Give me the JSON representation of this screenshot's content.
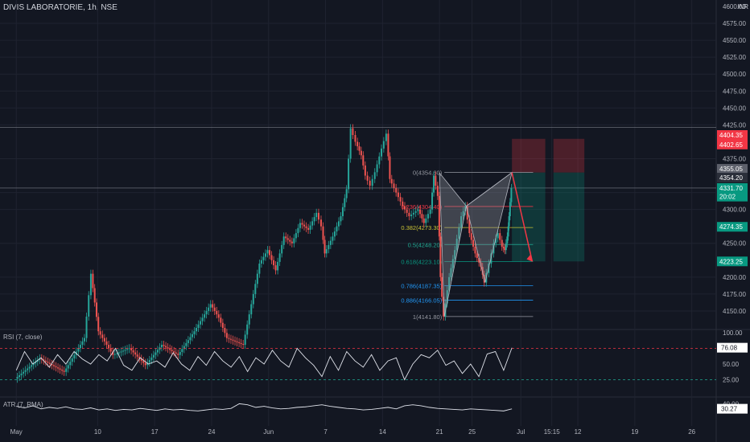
{
  "chart_data": {
    "type": "candlestick",
    "title": "DIVIS LABORATORIE, 1h, NSE",
    "currency": "INR",
    "colors": {
      "up": "#26a69a",
      "down": "#ef5350",
      "bg": "#131722",
      "grid": "#1f2330",
      "text": "#b2b5be",
      "fib_gray": "#9598a1",
      "fib_red": "#f23645",
      "fib_yellow": "#c9c235",
      "fib_green": "#22ab94",
      "fib_teal": "#089981",
      "fib_cyan": "#2196f3",
      "stop": "#f23645",
      "target": "#089981"
    },
    "price_axis": {
      "min": 4125,
      "max": 4600,
      "ticks": [
        "4575.00",
        "4550.00",
        "4525.00",
        "4500.00",
        "4475.00",
        "4450.00",
        "4425.00",
        "4375.00",
        "4325.00",
        "4300.00",
        "4250.00",
        "4200.00",
        "4175.00",
        "4150.00"
      ],
      "top_label": "4600.00"
    },
    "x_axis": {
      "ticks": [
        "May",
        "10",
        "17",
        "24",
        "Jun",
        "7",
        "14",
        "21",
        "25",
        "Jul",
        "15:15",
        "12",
        "19",
        "26"
      ],
      "positions": [
        0,
        10,
        17,
        24,
        31,
        38,
        45,
        52,
        56,
        62,
        65.8,
        69,
        76,
        83
      ],
      "range": [
        -2,
        86
      ]
    },
    "price_series": [
      {
        "t": 0,
        "p": 4050
      },
      {
        "t": 3,
        "p": 4080
      },
      {
        "t": 6,
        "p": 4060
      },
      {
        "t": 8.5,
        "p": 4110
      },
      {
        "t": 9.3,
        "p": 4205
      },
      {
        "t": 10.2,
        "p": 4120
      },
      {
        "t": 12,
        "p": 4085
      },
      {
        "t": 14,
        "p": 4095
      },
      {
        "t": 16,
        "p": 4070
      },
      {
        "t": 18,
        "p": 4100
      },
      {
        "t": 20,
        "p": 4085
      },
      {
        "t": 22,
        "p": 4120
      },
      {
        "t": 24,
        "p": 4160
      },
      {
        "t": 25,
        "p": 4140
      },
      {
        "t": 26,
        "p": 4110
      },
      {
        "t": 28,
        "p": 4100
      },
      {
        "t": 29,
        "p": 4160
      },
      {
        "t": 30,
        "p": 4220
      },
      {
        "t": 31,
        "p": 4240
      },
      {
        "t": 32,
        "p": 4210
      },
      {
        "t": 33,
        "p": 4260
      },
      {
        "t": 34,
        "p": 4250
      },
      {
        "t": 35,
        "p": 4280
      },
      {
        "t": 36,
        "p": 4270
      },
      {
        "t": 37,
        "p": 4295
      },
      {
        "t": 37.6,
        "p": 4275
      },
      {
        "t": 38,
        "p": 4235
      },
      {
        "t": 39,
        "p": 4260
      },
      {
        "t": 40,
        "p": 4290
      },
      {
        "t": 40.7,
        "p": 4330
      },
      {
        "t": 41.2,
        "p": 4420
      },
      {
        "t": 41.8,
        "p": 4400
      },
      {
        "t": 42.5,
        "p": 4380
      },
      {
        "t": 43,
        "p": 4350
      },
      {
        "t": 43.6,
        "p": 4335
      },
      {
        "t": 44.2,
        "p": 4355
      },
      {
        "t": 45,
        "p": 4390
      },
      {
        "t": 45.6,
        "p": 4412
      },
      {
        "t": 46,
        "p": 4345
      },
      {
        "t": 46.8,
        "p": 4325
      },
      {
        "t": 47.6,
        "p": 4305
      },
      {
        "t": 48.4,
        "p": 4290
      },
      {
        "t": 49.5,
        "p": 4300
      },
      {
        "t": 50.2,
        "p": 4280
      },
      {
        "t": 51,
        "p": 4300
      },
      {
        "t": 51.4,
        "p": 4350
      },
      {
        "t": 51.9,
        "p": 4320
      },
      {
        "t": 52.2,
        "p": 4200
      },
      {
        "t": 52.6,
        "p": 4141.8
      },
      {
        "t": 53.3,
        "p": 4200
      },
      {
        "t": 54,
        "p": 4240
      },
      {
        "t": 54.8,
        "p": 4290
      },
      {
        "t": 55.3,
        "p": 4305
      },
      {
        "t": 55.8,
        "p": 4265
      },
      {
        "t": 56.5,
        "p": 4235
      },
      {
        "t": 57.2,
        "p": 4215
      },
      {
        "t": 57.6,
        "p": 4192
      },
      {
        "t": 58.2,
        "p": 4220
      },
      {
        "t": 58.8,
        "p": 4250
      },
      {
        "t": 59.3,
        "p": 4265
      },
      {
        "t": 59.8,
        "p": 4245
      },
      {
        "t": 60.1,
        "p": 4240
      },
      {
        "t": 60.4,
        "p": 4260
      },
      {
        "t": 60.6,
        "p": 4290
      },
      {
        "t": 60.9,
        "p": 4331.7
      }
    ],
    "pattern": {
      "points": [
        [
          52.0,
          4354
        ],
        [
          52.6,
          4141.8
        ],
        [
          55.3,
          4305
        ],
        [
          57.6,
          4192
        ],
        [
          60.9,
          4354.6
        ]
      ]
    },
    "projection": {
      "points": [
        [
          60.9,
          4354.6
        ],
        [
          63.4,
          4223
        ]
      ]
    },
    "fib": {
      "x1": 52.6,
      "x2": 63.5,
      "labels": [
        {
          "label": "0(4354.60)",
          "price": 4354.6,
          "color": "fib_gray"
        },
        {
          "label": "0.236(4304.40)",
          "price": 4304.4,
          "color": "fib_red"
        },
        {
          "label": "0.382(4273.30)",
          "price": 4273.3,
          "color": "fib_yellow"
        },
        {
          "label": "0.5(4248.20)",
          "price": 4248.2,
          "color": "fib_green"
        },
        {
          "label": "0.618(4223.10)",
          "price": 4223.1,
          "color": "fib_teal"
        },
        {
          "label": "0.786(4187.35)",
          "price": 4187.35,
          "color": "fib_cyan"
        },
        {
          "label": "0.886(4166.05)",
          "price": 4166.05,
          "color": "fib_cyan"
        },
        {
          "label": "1(4141.80)",
          "price": 4141.8,
          "color": "fib_gray"
        }
      ]
    },
    "position_box": {
      "x_start": 60.9,
      "x_end": 65.0,
      "entry": 4354.6,
      "stop": 4404.35,
      "target": 4223.25
    },
    "position_box_right": {
      "x_start": 66.0,
      "x_end": 69.8,
      "entry": 4354.6,
      "stop": 4404.35,
      "target": 4223.25
    },
    "hlines": [
      4421,
      4331.7
    ],
    "price_labels": [
      {
        "text": "4404.35",
        "price": 4410,
        "color": "#f23645"
      },
      {
        "text": "4402.65",
        "price": 4396,
        "color": "#f23645"
      },
      {
        "text": "4355.05",
        "price": 4360,
        "color": "#5d606b"
      },
      {
        "text": "4354.20",
        "price": 4347,
        "color": "#2a2e39"
      },
      {
        "text": "4331.70",
        "price": 4331.7,
        "color": "#089981"
      },
      {
        "text": "20:02",
        "price": 4319,
        "color": "#089981"
      },
      {
        "text": "4274.35",
        "price": 4274.35,
        "color": "#089981"
      },
      {
        "text": "4223.25",
        "price": 4223.25,
        "color": "#089981"
      }
    ],
    "rsi": {
      "title": "RSI (7, close)",
      "ticks": [
        "100.00",
        "50.00",
        "25.00"
      ],
      "upper": 75,
      "lower": 25,
      "last": "76.08",
      "min": 0,
      "max": 100,
      "values": [
        40,
        70,
        50,
        60,
        45,
        65,
        50,
        70,
        58,
        50,
        65,
        55,
        75,
        48,
        40,
        60,
        50,
        55,
        45,
        68,
        50,
        40,
        62,
        48,
        70,
        55,
        45,
        62,
        38,
        60,
        50,
        72,
        55,
        45,
        75,
        60,
        48,
        30,
        62,
        40,
        70,
        55,
        45,
        65,
        40,
        55,
        60,
        25,
        50,
        65,
        60,
        72,
        48,
        55,
        35,
        50,
        30,
        66,
        70,
        40,
        76
      ]
    },
    "atr": {
      "title": "ATR (7, RMA)",
      "ticks": [
        "40.00"
      ],
      "last": "30.27",
      "min": 0,
      "max": 50,
      "values": [
        35,
        32,
        36,
        30,
        33,
        31,
        34,
        30,
        29,
        32,
        28,
        30,
        27,
        29,
        28,
        31,
        29,
        27,
        30,
        28,
        29,
        27,
        26,
        28,
        30,
        29,
        31,
        40,
        38,
        33,
        35,
        32,
        30,
        31,
        33,
        34,
        36,
        38,
        35,
        33,
        31,
        30,
        28,
        29,
        31,
        33,
        30,
        36,
        38,
        36,
        33,
        31,
        30,
        29,
        28,
        30,
        29,
        28,
        27,
        26,
        30
      ]
    }
  }
}
